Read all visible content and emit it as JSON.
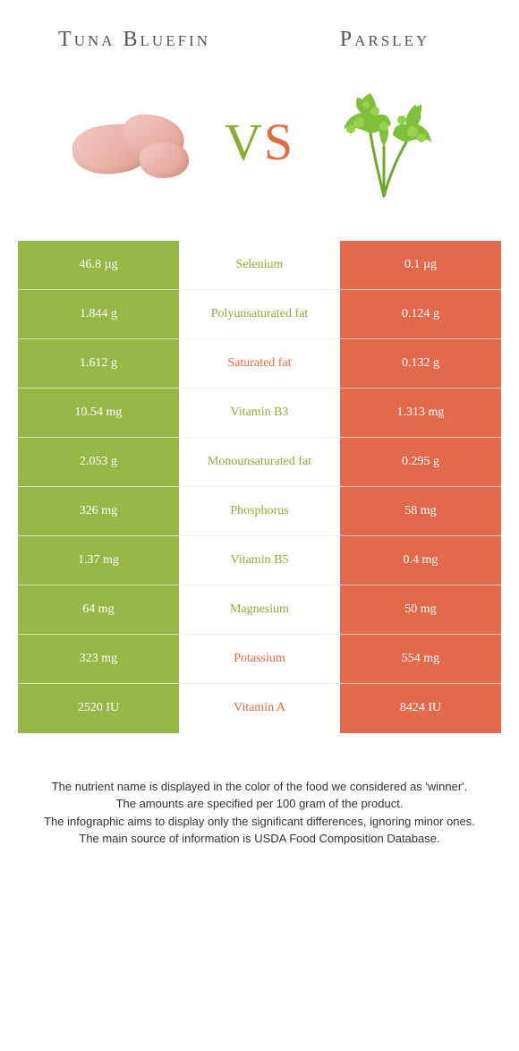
{
  "header": {
    "left_title": "Tuna Bluefin",
    "right_title": "Parsley",
    "vs_v": "V",
    "vs_s": "S"
  },
  "colors": {
    "left_bg": "#97b847",
    "right_bg": "#e2694b",
    "left_text": "#8aad3a",
    "right_text": "#e16a47"
  },
  "rows": [
    {
      "nutrient": "Selenium",
      "left": "46.8 µg",
      "right": "0.1 µg",
      "winner": "left"
    },
    {
      "nutrient": "Polyunsaturated fat",
      "left": "1.844 g",
      "right": "0.124 g",
      "winner": "left"
    },
    {
      "nutrient": "Saturated fat",
      "left": "1.612 g",
      "right": "0.132 g",
      "winner": "right"
    },
    {
      "nutrient": "Vitamin B3",
      "left": "10.54 mg",
      "right": "1.313 mg",
      "winner": "left"
    },
    {
      "nutrient": "Monounsaturated fat",
      "left": "2.053 g",
      "right": "0.295 g",
      "winner": "left"
    },
    {
      "nutrient": "Phosphorus",
      "left": "326 mg",
      "right": "58 mg",
      "winner": "left"
    },
    {
      "nutrient": "Vitamin B5",
      "left": "1.37 mg",
      "right": "0.4 mg",
      "winner": "left"
    },
    {
      "nutrient": "Magnesium",
      "left": "64 mg",
      "right": "50 mg",
      "winner": "left"
    },
    {
      "nutrient": "Potassium",
      "left": "323 mg",
      "right": "554 mg",
      "winner": "right"
    },
    {
      "nutrient": "Vitamin A",
      "left": "2520 IU",
      "right": "8424 IU",
      "winner": "right"
    }
  ],
  "footnotes": [
    "The nutrient name is displayed in the color of the food we considered as 'winner'.",
    "The amounts are specified per 100 gram of the product.",
    "The infographic aims to display only the significant differences, ignoring minor ones.",
    "The main source of information is USDA Food Composition Database."
  ]
}
